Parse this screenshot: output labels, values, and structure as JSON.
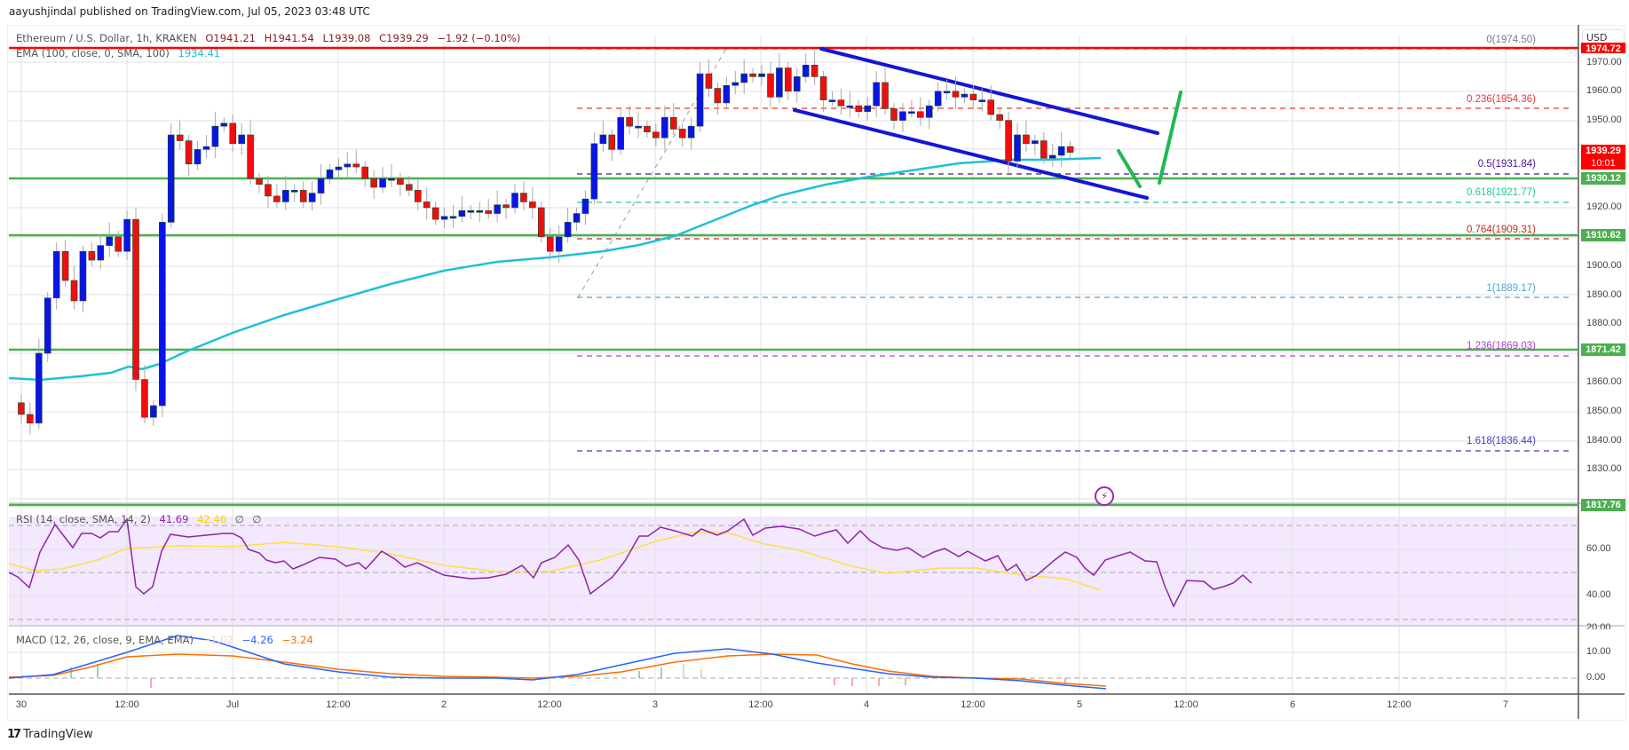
{
  "publisher": "aayushjindal published on TradingView.com, Jul 05, 2023 03:48 UTC",
  "legend": {
    "symbol": "Ethereum / U.S. Dollar, 1h, KRAKEN",
    "open": "O1941.21",
    "high": "H1941.54",
    "low": "L1939.08",
    "close": "C1939.29",
    "change": "−1.92 (−0.10%)",
    "ema_label": "EMA (100, close, 0, SMA, 100)",
    "ema_value": "1934.41"
  },
  "rsi_legend": {
    "label": "RSI (14, close, SMA, 14, 2)",
    "rsi": "41.69",
    "sma": "42.46",
    "x1": "∅",
    "x2": "∅"
  },
  "macd_legend": {
    "label": "MACD (12, 26, close, 9, EMA, EMA)",
    "hist": "−1.02",
    "macd": "−4.26",
    "signal": "−3.24"
  },
  "price_axis": {
    "currency": "USD",
    "ticks": [
      "1970.00",
      "1960.00",
      "1950.00",
      "1920.00",
      "1900.00",
      "1890.00",
      "1880.00",
      "1860.00",
      "1850.00",
      "1840.00",
      "1830.00"
    ],
    "tags": {
      "high_red": "1974.72",
      "last_price": "1939.29",
      "countdown": "10:01",
      "g1": "1930.12",
      "g2": "1910.62",
      "g3": "1871.42",
      "g4": "1817.76"
    }
  },
  "rsi_axis": {
    "ticks": [
      "60.00",
      "40.00"
    ]
  },
  "macd_axis": {
    "ticks": [
      "20.00",
      "10.00",
      "0.00"
    ]
  },
  "fib_levels": [
    {
      "label": "0(1974.50)",
      "color": "#787b86"
    },
    {
      "label": "0.236(1954.36)",
      "color": "#e53935"
    },
    {
      "label": "0.5(1931.84)",
      "color": "#4a148c"
    },
    {
      "label": "0.618(1921.77)",
      "color": "#26c6a0"
    },
    {
      "label": "0.764(1909.31)",
      "color": "#c62828"
    },
    {
      "label": "1(1889.17)",
      "color": "#4fa3d9"
    },
    {
      "label": "1.236(1869.03)",
      "color": "#b040d0"
    },
    {
      "label": "1.618(1836.44)",
      "color": "#3f3fc8"
    }
  ],
  "time_axis": [
    "30",
    "12:00",
    "Jul",
    "12:00",
    "2",
    "12:00",
    "3",
    "12:00",
    "4",
    "12:00",
    "5",
    "12:00",
    "6",
    "12:00",
    "7"
  ],
  "branding": "TradingView",
  "colors": {
    "up": "#0a14e8",
    "down": "#f20d0d",
    "ema": "#1ec0d8",
    "support": "#4caf50",
    "resistance": "#ff0000",
    "channel": "#1515d6",
    "arrow": "#1db954",
    "rsi": "#8e24aa",
    "rsi_sma": "#fde047",
    "macd": "#2962ff",
    "signal": "#ff6d00"
  },
  "chart_data": {
    "type": "candlestick",
    "title": "Ethereum / U.S. Dollar, 1h, KRAKEN",
    "xlabel": "",
    "ylabel": "USD",
    "ylim": [
      1815,
      1978
    ],
    "x_ticks": [
      "Jun 30",
      "12:00",
      "Jul 1",
      "12:00",
      "Jul 2",
      "12:00",
      "Jul 3",
      "12:00",
      "Jul 4",
      "12:00",
      "Jul 5",
      "12:00",
      "Jul 6",
      "12:00",
      "Jul 7"
    ],
    "last": {
      "open": 1941.21,
      "high": 1941.54,
      "low": 1939.08,
      "close": 1939.29,
      "change": -1.92,
      "change_pct": -0.1
    },
    "ema100_last": 1934.41,
    "horizontal_levels": {
      "resistance": [
        1974.72
      ],
      "support": [
        1930.12,
        1910.62,
        1871.42,
        1817.76
      ]
    },
    "fibonacci": [
      {
        "ratio": 0,
        "price": 1974.5
      },
      {
        "ratio": 0.236,
        "price": 1954.36
      },
      {
        "ratio": 0.5,
        "price": 1931.84
      },
      {
        "ratio": 0.618,
        "price": 1921.77
      },
      {
        "ratio": 0.764,
        "price": 1909.31
      },
      {
        "ratio": 1,
        "price": 1889.17
      },
      {
        "ratio": 1.236,
        "price": 1869.03
      },
      {
        "ratio": 1.618,
        "price": 1836.44
      }
    ],
    "channel": {
      "type": "descending",
      "upper": [
        [
          1974,
          "Jul 3 15:00"
        ],
        [
          1948,
          "Jul 5 08:00"
        ]
      ],
      "lower": [
        [
          1953,
          "Jul 3 14:00"
        ],
        [
          1923,
          "Jul 5 08:00"
        ]
      ]
    },
    "indicators": {
      "rsi": {
        "value": 41.69,
        "sma": 42.46,
        "range": [
          30,
          70
        ]
      },
      "macd": {
        "histogram": -1.02,
        "macd": -4.26,
        "signal": -3.24
      }
    },
    "approx_closes": [
      1853,
      1849,
      1846,
      1870,
      1889,
      1905,
      1895,
      1888,
      1905,
      1902,
      1907,
      1910,
      1905,
      1916,
      1861,
      1848,
      1852,
      1915,
      1945,
      1943,
      1935,
      1940,
      1941,
      1948,
      1949,
      1942,
      1945,
      1930,
      1928,
      1924,
      1922,
      1926,
      1926,
      1922,
      1925,
      1930,
      1933,
      1934,
      1935,
      1934,
      1930,
      1927,
      1930,
      1930,
      1928,
      1926,
      1922,
      1920,
      1916,
      1917,
      1917,
      1919,
      1919,
      1919,
      1918,
      1921,
      1920,
      1925,
      1922,
      1920,
      1910,
      1905,
      1910,
      1915,
      1918,
      1923,
      1942,
      1945,
      1940,
      1951,
      1948,
      1948,
      1946,
      1944,
      1951,
      1947,
      1944,
      1948,
      1966,
      1961,
      1956,
      1962,
      1963,
      1966,
      1965,
      1966,
      1958,
      1968,
      1960,
      1965,
      1969,
      1965,
      1957,
      1957,
      1955,
      1955,
      1953,
      1955,
      1963,
      1954,
      1950,
      1953,
      1953,
      1951,
      1955,
      1960,
      1960,
      1958,
      1959,
      1957,
      1957,
      1952,
      1950,
      1936,
      1945,
      1942,
      1943,
      1937,
      1938,
      1941,
      1939
    ]
  }
}
